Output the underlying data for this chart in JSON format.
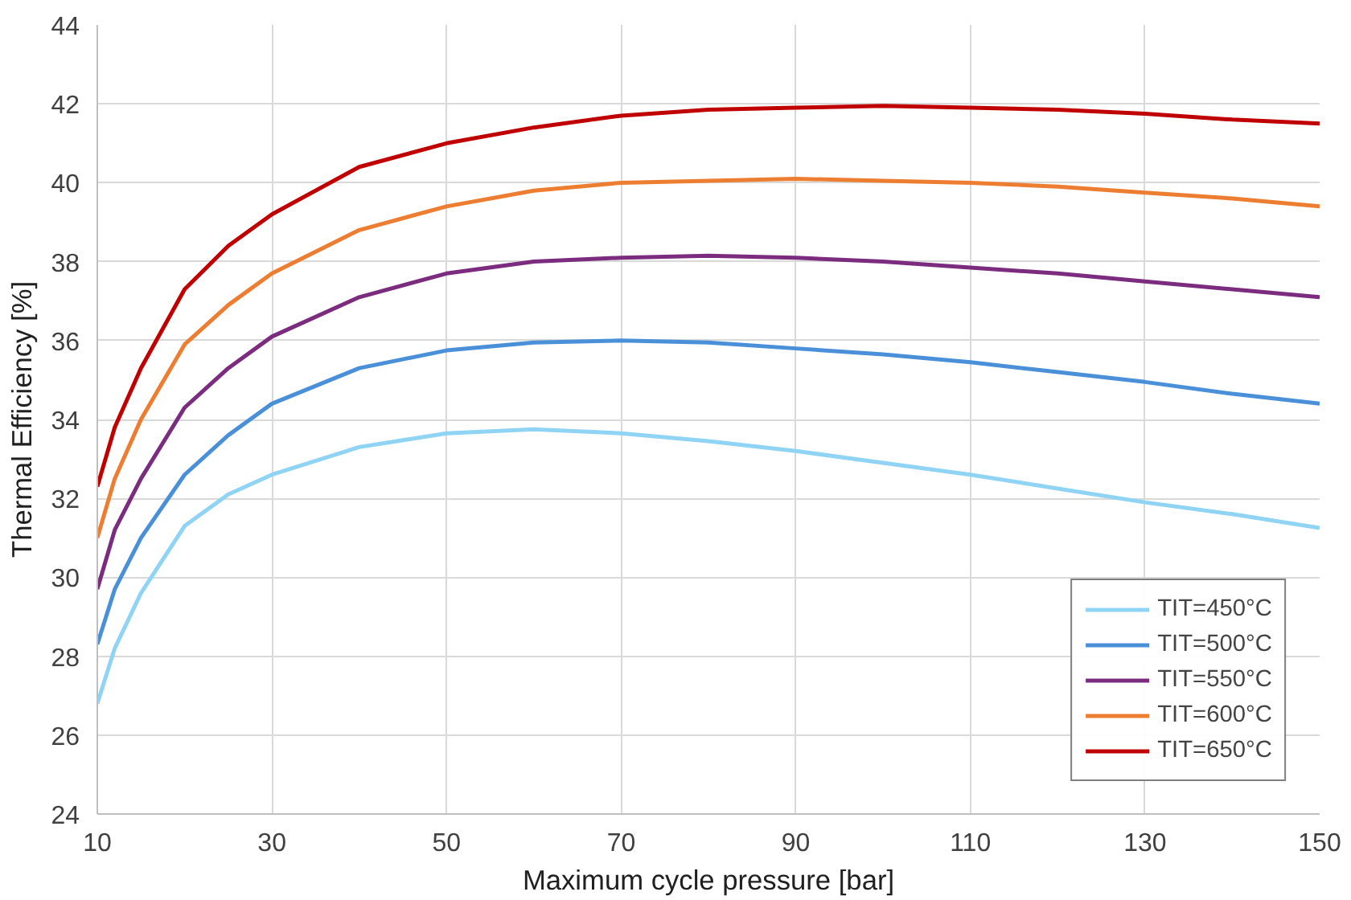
{
  "chart_data": {
    "type": "line",
    "xlabel": "Maximum cycle pressure [bar]",
    "ylabel": "Thermal Efficiency [%]",
    "x": [
      10,
      12,
      15,
      20,
      25,
      30,
      40,
      50,
      60,
      70,
      80,
      90,
      100,
      110,
      120,
      130,
      140,
      150
    ],
    "xlim": [
      10,
      150
    ],
    "xticks": [
      10,
      30,
      50,
      70,
      90,
      110,
      130,
      150
    ],
    "ylim": [
      24,
      44
    ],
    "yticks": [
      24,
      26,
      28,
      30,
      32,
      34,
      36,
      38,
      40,
      42,
      44
    ],
    "grid": true,
    "legend": "bottom right",
    "marker": "none",
    "line_style": "solid",
    "series": [
      {
        "name": "TIT=450°C",
        "color": "#8fd3f5",
        "values": [
          26.8,
          28.2,
          29.6,
          31.3,
          32.1,
          32.6,
          33.3,
          33.65,
          33.75,
          33.65,
          33.45,
          33.2,
          32.9,
          32.6,
          32.25,
          31.9,
          31.6,
          31.25
        ]
      },
      {
        "name": "TIT=500°C",
        "color": "#4a90d9",
        "values": [
          28.3,
          29.7,
          31.0,
          32.6,
          33.6,
          34.4,
          35.3,
          35.75,
          35.95,
          36.0,
          35.95,
          35.8,
          35.65,
          35.45,
          35.2,
          34.95,
          34.65,
          34.4
        ]
      },
      {
        "name": "TIT=550°C",
        "color": "#7b2c7e",
        "values": [
          29.7,
          31.2,
          32.5,
          34.3,
          35.3,
          36.1,
          37.1,
          37.7,
          38.0,
          38.1,
          38.15,
          38.1,
          38.0,
          37.85,
          37.7,
          37.5,
          37.3,
          37.1
        ]
      },
      {
        "name": "TIT=600°C",
        "color": "#ed7d31",
        "values": [
          31.0,
          32.5,
          34.0,
          35.9,
          36.9,
          37.7,
          38.8,
          39.4,
          39.8,
          40.0,
          40.05,
          40.1,
          40.05,
          40.0,
          39.9,
          39.75,
          39.6,
          39.4
        ]
      },
      {
        "name": "TIT=650°C",
        "color": "#c00000",
        "values": [
          32.3,
          33.8,
          35.3,
          37.3,
          38.4,
          39.2,
          40.4,
          41.0,
          41.4,
          41.7,
          41.85,
          41.9,
          41.95,
          41.9,
          41.85,
          41.75,
          41.6,
          41.5
        ]
      }
    ]
  }
}
